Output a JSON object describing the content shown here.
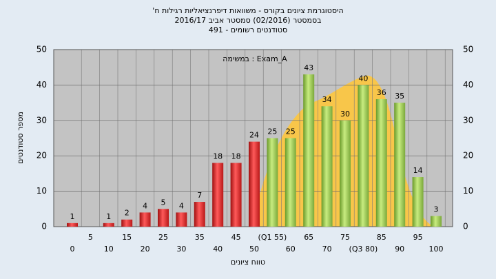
{
  "chart_data": {
    "type": "bar",
    "title": [
      "'היסטוגרמת ציונים בקורס - משוואות דיפרנציאליות רגילות ח",
      "בסמסטר  (02/2016)  סמסטר אביב 2016/17",
      "סטודנטים רשומים - 491"
    ],
    "annotation": "במשימה : Exam_A",
    "x_label": "טווח ציונים",
    "y_label": "מספר סטודנטים",
    "categories": [
      "0",
      "5",
      "10",
      "15",
      "20",
      "25",
      "30",
      "35",
      "40",
      "45",
      "50",
      "(Q1 55)",
      "60",
      "65",
      "70",
      "75",
      "(Q3 80)",
      "85",
      "90",
      "95",
      "100"
    ],
    "values": [
      1,
      null,
      1,
      2,
      4,
      5,
      4,
      7,
      18,
      18,
      24,
      25,
      25,
      43,
      34,
      30,
      40,
      36,
      35,
      14,
      3
    ],
    "bar_colors": [
      "red",
      "red",
      "red",
      "red",
      "red",
      "red",
      "red",
      "red",
      "red",
      "red",
      "red",
      "green",
      "green",
      "green",
      "green",
      "green",
      "green",
      "green",
      "green",
      "green",
      "green"
    ],
    "ylim": [
      0,
      50
    ],
    "yticks": [
      0,
      10,
      20,
      30,
      40,
      50
    ],
    "grid": true
  }
}
